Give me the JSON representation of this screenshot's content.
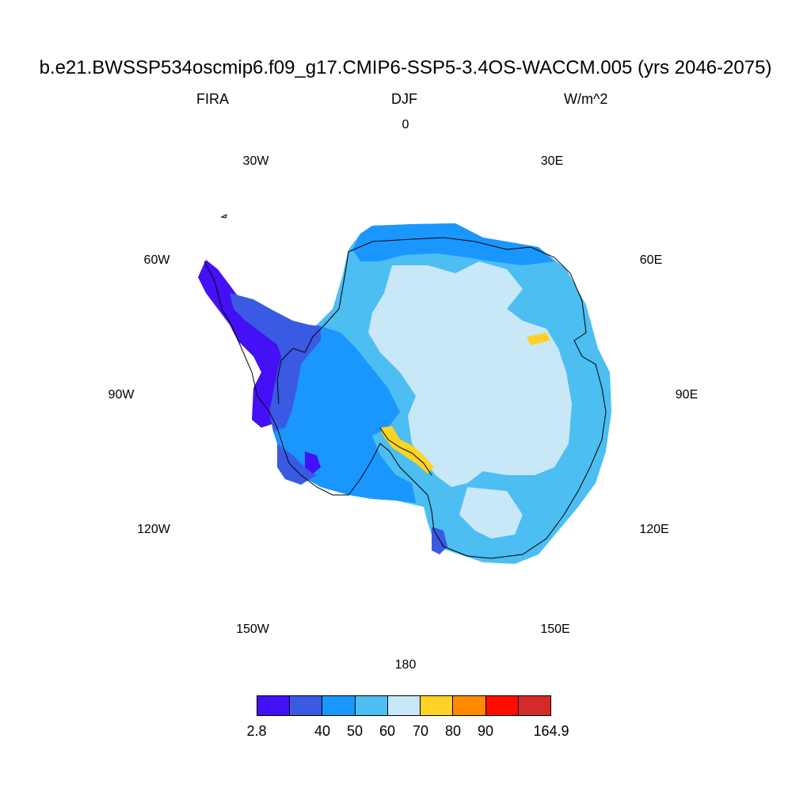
{
  "header": {
    "title": "b.e21.BWSSP534oscmip6.f09_g17.CMIP6-SSP5-3.4OS-WACCM.005 (yrs 2046-2075)",
    "variable": "FIRA",
    "season": "DJF",
    "units": "W/m^2"
  },
  "longitude_labels": [
    "0",
    "30E",
    "60E",
    "90E",
    "120E",
    "150E",
    "180",
    "150W",
    "120W",
    "90W",
    "60W",
    "30W"
  ],
  "colorbar": {
    "colors": [
      "#4410f5",
      "#3a5ae3",
      "#1a96ff",
      "#4cbef2",
      "#c8e8f8",
      "#ffd225",
      "#ff8a00",
      "#ff0b00",
      "#d42a2a"
    ],
    "labels": [
      "2.8",
      "40",
      "50",
      "60",
      "70",
      "80",
      "90",
      "164.9"
    ]
  },
  "map": {
    "projection": "south-polar-stereographic",
    "region": "Antarctica",
    "coastline_color": "#000000"
  }
}
